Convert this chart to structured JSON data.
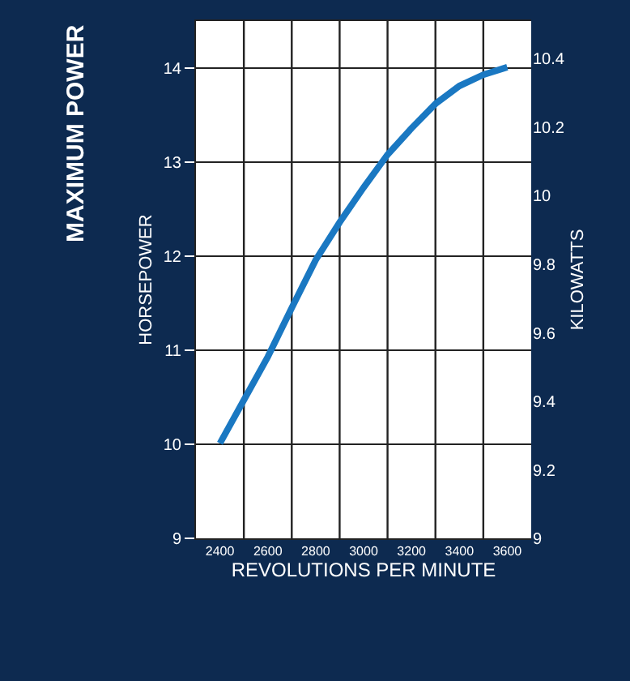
{
  "chart_data": {
    "type": "line",
    "title": "MAXIMUM POWER",
    "xlabel": "REVOLUTIONS PER MINUTE",
    "ylabel": "HORSEPOWER",
    "y2label": "KILOWATTS",
    "x": [
      2400,
      2500,
      2600,
      2700,
      2800,
      2900,
      3000,
      3100,
      3200,
      3300,
      3400,
      3500,
      3600
    ],
    "series": [
      {
        "color": "#1a78c2",
        "values": [
          10.01,
          10.47,
          10.93,
          11.45,
          11.96,
          12.36,
          12.73,
          13.08,
          13.36,
          13.62,
          13.81,
          13.93,
          14.01
        ]
      }
    ],
    "xlim": [
      2300,
      3700
    ],
    "xticks": [
      {
        "value": 2400,
        "label": "2400"
      },
      {
        "value": 2500,
        "label": null
      },
      {
        "value": 2600,
        "label": "2600"
      },
      {
        "value": 2700,
        "label": null
      },
      {
        "value": 2800,
        "label": "2800"
      },
      {
        "value": 2900,
        "label": null
      },
      {
        "value": 3000,
        "label": "3000"
      },
      {
        "value": 3100,
        "label": null
      },
      {
        "value": 3200,
        "label": "3200"
      },
      {
        "value": 3300,
        "label": null
      },
      {
        "value": 3400,
        "label": "3400"
      },
      {
        "value": 3500,
        "label": null
      },
      {
        "value": 3600,
        "label": "3600"
      }
    ],
    "ylim": [
      9,
      14.5
    ],
    "yticks": [
      9,
      10,
      11,
      12,
      13,
      14
    ],
    "y2lim": [
      9,
      10.51
    ],
    "y2ticks": [
      9,
      9.2,
      9.4,
      9.6,
      9.8,
      10,
      10.2,
      10.4
    ],
    "grid": true,
    "legend": false,
    "marker": "none",
    "line_style": "solid"
  }
}
